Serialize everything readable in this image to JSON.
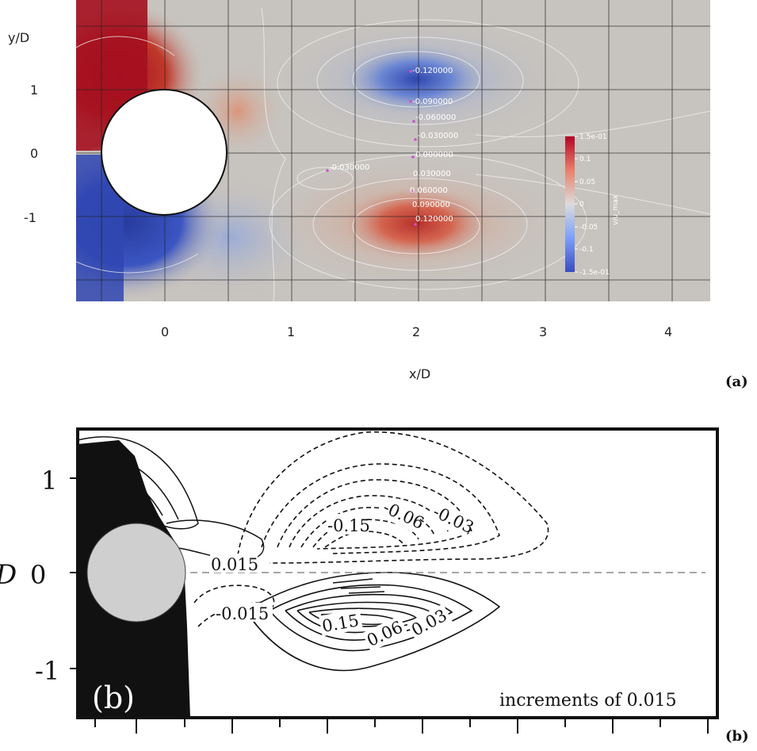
{
  "panel_a": {
    "tag": "(a)",
    "ylabel": "y/D",
    "xlabel": "x/D",
    "y_ticks": [
      "1",
      "0",
      "-1"
    ],
    "x_ticks": [
      "0",
      "1",
      "2",
      "3",
      "4"
    ],
    "colorbar": {
      "title": "v/u_max",
      "ticks": [
        "1.5e-01",
        "0.1",
        "0.05",
        "0",
        "-0.05",
        "-0.1",
        "-1.5e-01"
      ],
      "colors": {
        "high": "#b40426",
        "mid": "#dddcdc",
        "low": "#3b4cc0"
      }
    },
    "contour_labels": [
      "-0.120000",
      "-0.090000",
      "-0.060000",
      "-0.030000",
      "0.000000",
      "-0.030000",
      "0.030000",
      "0.060000",
      "0.090000",
      "0.120000"
    ]
  },
  "panel_b": {
    "tag": "(b)",
    "inner_tag": "(b)",
    "ylabel_partial": "D",
    "y_ticks": [
      "1",
      "0",
      "-1"
    ],
    "contour_labels": [
      "0.015",
      "-0.15",
      "-0.06",
      "-0.03",
      "-0.015",
      "0.15",
      "0.06",
      "0.03"
    ],
    "note": "increments of 0.015"
  }
}
